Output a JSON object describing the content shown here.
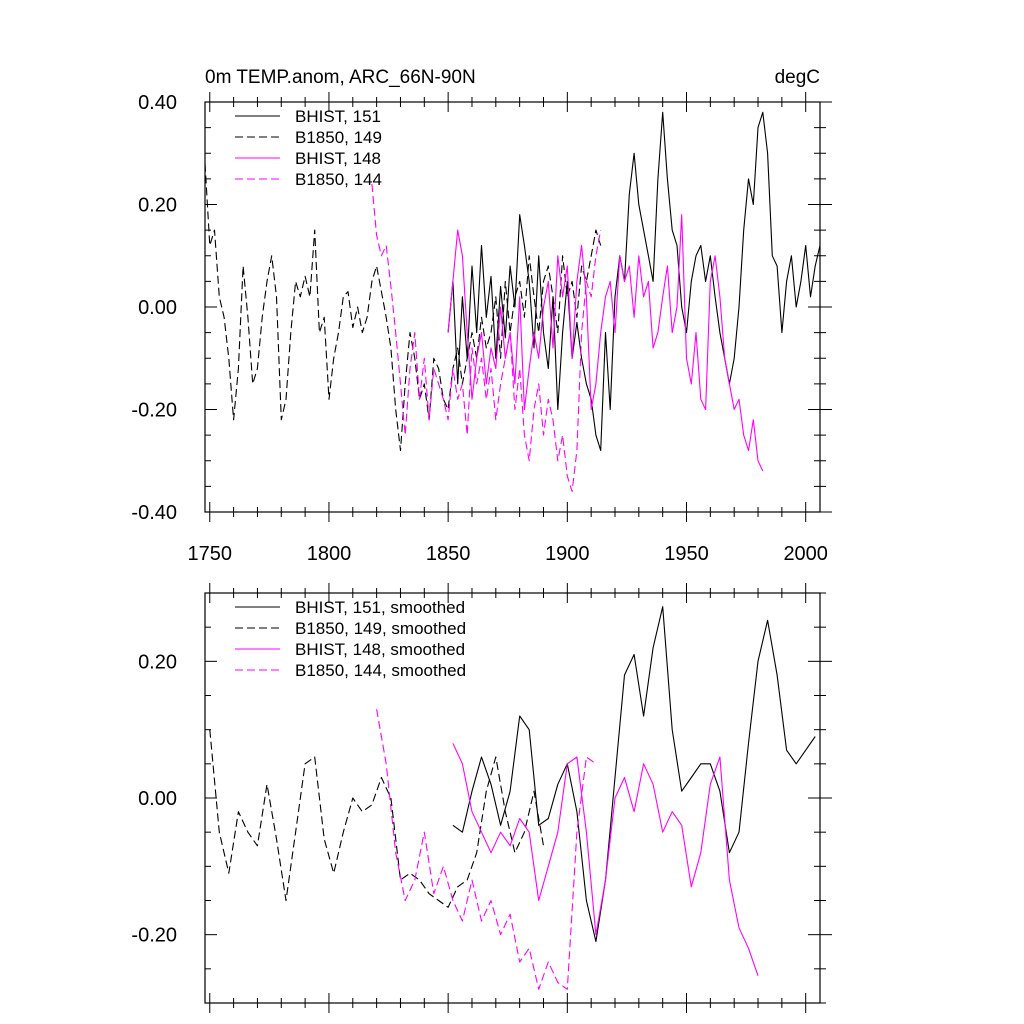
{
  "title_left": "0m TEMP.anom, ARC_66N-90N",
  "title_right": "degC",
  "colors": {
    "black": "#000000",
    "magenta": "#ff00ff"
  },
  "chart_data": [
    {
      "type": "line",
      "xlim": [
        1748,
        2006
      ],
      "ylim": [
        -0.4,
        0.4
      ],
      "xticks": [
        1750,
        1800,
        1850,
        1900,
        1950,
        2000
      ],
      "xtick_labels": [
        "1750",
        "1800",
        "1850",
        "1900",
        "1950",
        "2000"
      ],
      "yticks": [
        -0.4,
        -0.2,
        0.0,
        0.2,
        0.4
      ],
      "ytick_labels": [
        "-0.40",
        "-0.20",
        "0.00",
        "0.20",
        "0.40"
      ],
      "legend_position": "top-left",
      "series": [
        {
          "name": "BHIST, 151",
          "color": "#000000",
          "dash": "solid",
          "x": [
            1850,
            1852,
            1854,
            1856,
            1858,
            1860,
            1862,
            1864,
            1866,
            1868,
            1870,
            1872,
            1874,
            1876,
            1878,
            1880,
            1882,
            1884,
            1886,
            1888,
            1890,
            1892,
            1894,
            1896,
            1898,
            1900,
            1902,
            1904,
            1906,
            1908,
            1910,
            1912,
            1914,
            1916,
            1918,
            1920,
            1922,
            1924,
            1926,
            1928,
            1930,
            1932,
            1934,
            1936,
            1938,
            1940,
            1942,
            1944,
            1946,
            1948,
            1950,
            1952,
            1954,
            1956,
            1958,
            1960,
            1962,
            1964,
            1966,
            1968,
            1970,
            1972,
            1974,
            1976,
            1978,
            1980,
            1982,
            1984,
            1986,
            1988,
            1990,
            1992,
            1994,
            1996,
            1998,
            2000,
            2002,
            2004,
            2006
          ],
          "y": [
            -0.05,
            0.05,
            -0.15,
            0.02,
            -0.1,
            0.08,
            -0.05,
            0.12,
            -0.02,
            0.06,
            -0.1,
            0.04,
            -0.06,
            0.08,
            0.0,
            0.18,
            0.12,
            0.05,
            -0.08,
            0.1,
            -0.05,
            -0.12,
            0.02,
            -0.2,
            -0.05,
            0.05,
            -0.1,
            -0.03,
            -0.1,
            -0.15,
            -0.18,
            -0.25,
            -0.28,
            -0.05,
            -0.2,
            0.02,
            0.1,
            0.05,
            0.22,
            0.3,
            0.2,
            0.15,
            0.1,
            0.05,
            0.25,
            0.38,
            0.25,
            0.15,
            0.12,
            0.0,
            -0.05,
            0.05,
            0.1,
            0.12,
            0.05,
            0.1,
            0.02,
            -0.05,
            -0.1,
            -0.15,
            -0.1,
            0.0,
            0.15,
            0.25,
            0.2,
            0.35,
            0.38,
            0.3,
            0.1,
            0.08,
            -0.05,
            0.05,
            0.1,
            0.0,
            0.05,
            0.12,
            0.02,
            0.08,
            0.12
          ]
        },
        {
          "name": "B1850, 149",
          "color": "#000000",
          "dash": "dashed",
          "x": [
            1748,
            1750,
            1752,
            1754,
            1756,
            1758,
            1760,
            1762,
            1764,
            1766,
            1768,
            1770,
            1772,
            1774,
            1776,
            1778,
            1780,
            1782,
            1784,
            1786,
            1788,
            1790,
            1792,
            1794,
            1796,
            1798,
            1800,
            1802,
            1804,
            1806,
            1808,
            1810,
            1812,
            1814,
            1816,
            1818,
            1820,
            1822,
            1824,
            1826,
            1828,
            1830,
            1832,
            1834,
            1836,
            1838,
            1840,
            1842,
            1844,
            1846,
            1848,
            1850,
            1852,
            1854,
            1856,
            1858,
            1860,
            1862,
            1864,
            1866,
            1868,
            1870,
            1872,
            1874,
            1876,
            1878,
            1880,
            1882,
            1884,
            1886,
            1888,
            1890,
            1892,
            1894,
            1896,
            1898,
            1900,
            1902,
            1904,
            1906,
            1908,
            1910,
            1912,
            1914
          ],
          "y": [
            0.28,
            0.12,
            0.15,
            0.02,
            -0.02,
            -0.1,
            -0.22,
            -0.12,
            0.08,
            -0.02,
            -0.15,
            -0.12,
            -0.02,
            0.05,
            0.1,
            0.02,
            -0.22,
            -0.18,
            -0.05,
            0.05,
            0.02,
            0.06,
            0.02,
            0.15,
            -0.05,
            -0.02,
            -0.18,
            -0.1,
            -0.05,
            0.02,
            0.03,
            -0.04,
            0.0,
            -0.05,
            -0.02,
            0.05,
            0.08,
            0.03,
            -0.02,
            -0.08,
            -0.2,
            -0.28,
            -0.15,
            -0.05,
            -0.1,
            -0.18,
            -0.15,
            -0.22,
            -0.1,
            -0.12,
            -0.18,
            -0.2,
            -0.12,
            -0.08,
            -0.15,
            -0.1,
            -0.05,
            -0.1,
            -0.02,
            -0.08,
            -0.05,
            0.02,
            -0.1,
            0.05,
            -0.05,
            0.02,
            0.05,
            -0.02,
            0.1,
            0.02,
            -0.05,
            0.05,
            0.08,
            0.02,
            -0.05,
            0.1,
            0.02,
            0.05,
            -0.02,
            0.08,
            0.05,
            0.1,
            0.15,
            0.12
          ]
        },
        {
          "name": "BHIST, 148",
          "color": "#ff00ff",
          "dash": "solid",
          "x": [
            1850,
            1852,
            1854,
            1856,
            1858,
            1860,
            1862,
            1864,
            1866,
            1868,
            1870,
            1872,
            1874,
            1876,
            1878,
            1880,
            1882,
            1884,
            1886,
            1888,
            1890,
            1892,
            1894,
            1896,
            1898,
            1900,
            1902,
            1904,
            1906,
            1908,
            1910,
            1912,
            1914,
            1916,
            1918,
            1920,
            1922,
            1924,
            1926,
            1928,
            1930,
            1932,
            1934,
            1936,
            1938,
            1940,
            1942,
            1944,
            1946,
            1948,
            1950,
            1952,
            1954,
            1956,
            1958,
            1960,
            1962,
            1964,
            1966,
            1968,
            1970,
            1972,
            1974,
            1976,
            1978,
            1980,
            1982
          ],
          "y": [
            -0.05,
            0.05,
            0.15,
            0.1,
            -0.05,
            -0.18,
            -0.1,
            -0.05,
            -0.15,
            -0.08,
            -0.12,
            0.0,
            -0.1,
            -0.05,
            -0.15,
            0.02,
            -0.2,
            -0.12,
            -0.05,
            -0.1,
            0.0,
            0.05,
            -0.08,
            0.1,
            0.02,
            0.08,
            -0.1,
            0.05,
            0.12,
            0.02,
            -0.2,
            -0.15,
            -0.05,
            0.02,
            0.05,
            -0.05,
            0.1,
            0.05,
            0.08,
            -0.02,
            0.1,
            0.02,
            0.05,
            -0.08,
            -0.05,
            0.02,
            0.08,
            -0.05,
            0.0,
            0.18,
            -0.1,
            -0.15,
            -0.05,
            -0.18,
            -0.2,
            0.05,
            0.1,
            0.02,
            -0.1,
            -0.15,
            -0.2,
            -0.18,
            -0.25,
            -0.28,
            -0.22,
            -0.3,
            -0.32
          ]
        },
        {
          "name": "B1850, 144",
          "color": "#ff00ff",
          "dash": "dashed",
          "x": [
            1818,
            1820,
            1822,
            1824,
            1826,
            1828,
            1830,
            1832,
            1834,
            1836,
            1838,
            1840,
            1842,
            1844,
            1846,
            1848,
            1850,
            1852,
            1854,
            1856,
            1858,
            1860,
            1862,
            1864,
            1866,
            1868,
            1870,
            1872,
            1874,
            1876,
            1878,
            1880,
            1882,
            1884,
            1886,
            1888,
            1890,
            1892,
            1894,
            1896,
            1898,
            1900,
            1902,
            1904,
            1906,
            1908,
            1910,
            1912,
            1914
          ],
          "y": [
            0.24,
            0.14,
            0.1,
            0.12,
            0.04,
            -0.05,
            -0.15,
            -0.25,
            -0.12,
            -0.05,
            -0.18,
            -0.1,
            -0.22,
            -0.12,
            -0.15,
            -0.18,
            -0.22,
            -0.12,
            -0.18,
            -0.15,
            -0.25,
            -0.08,
            -0.15,
            -0.1,
            -0.18,
            -0.12,
            -0.22,
            -0.15,
            -0.1,
            -0.05,
            -0.2,
            -0.12,
            -0.25,
            -0.3,
            -0.2,
            -0.15,
            -0.25,
            -0.18,
            -0.22,
            -0.3,
            -0.25,
            -0.33,
            -0.36,
            -0.28,
            -0.05,
            0.05,
            0.02,
            0.1,
            0.15
          ]
        }
      ]
    },
    {
      "type": "line",
      "xlim": [
        1748,
        2006
      ],
      "ylim": [
        -0.3,
        0.3
      ],
      "xticks": [
        1750,
        1800,
        1850,
        1900,
        1950,
        2000
      ],
      "xtick_labels": [],
      "yticks": [
        -0.2,
        0.0,
        0.2
      ],
      "ytick_labels": [
        "-0.20",
        "0.00",
        "0.20"
      ],
      "legend_position": "top-left",
      "series": [
        {
          "name": "BHIST, 151, smoothed",
          "color": "#000000",
          "dash": "solid",
          "x": [
            1852,
            1856,
            1860,
            1864,
            1868,
            1872,
            1876,
            1880,
            1884,
            1888,
            1892,
            1896,
            1900,
            1904,
            1908,
            1912,
            1916,
            1920,
            1924,
            1928,
            1932,
            1936,
            1940,
            1944,
            1948,
            1952,
            1956,
            1960,
            1964,
            1968,
            1972,
            1976,
            1980,
            1984,
            1988,
            1992,
            1996,
            2000,
            2004
          ],
          "y": [
            -0.04,
            -0.05,
            0.01,
            0.06,
            0.02,
            -0.04,
            0.01,
            0.12,
            0.1,
            -0.04,
            -0.03,
            0.02,
            0.05,
            -0.02,
            -0.15,
            -0.21,
            -0.12,
            0.03,
            0.18,
            0.21,
            0.12,
            0.22,
            0.28,
            0.1,
            0.01,
            0.03,
            0.05,
            0.05,
            0.01,
            -0.08,
            -0.05,
            0.08,
            0.2,
            0.26,
            0.18,
            0.07,
            0.05,
            0.07,
            0.09
          ]
        },
        {
          "name": "B1850, 149, smoothed",
          "color": "#000000",
          "dash": "dashed",
          "x": [
            1750,
            1754,
            1758,
            1762,
            1766,
            1770,
            1774,
            1778,
            1782,
            1786,
            1790,
            1794,
            1798,
            1802,
            1806,
            1810,
            1814,
            1818,
            1822,
            1826,
            1830,
            1834,
            1838,
            1842,
            1846,
            1850,
            1854,
            1858,
            1862,
            1866,
            1870,
            1874,
            1878,
            1882,
            1886,
            1890
          ],
          "y": [
            0.1,
            -0.05,
            -0.11,
            -0.02,
            -0.05,
            -0.07,
            0.02,
            -0.06,
            -0.15,
            -0.05,
            0.05,
            0.06,
            -0.06,
            -0.11,
            -0.05,
            0.0,
            -0.02,
            -0.01,
            0.03,
            0.0,
            -0.12,
            -0.11,
            -0.12,
            -0.14,
            -0.15,
            -0.16,
            -0.13,
            -0.12,
            -0.08,
            0.01,
            0.06,
            -0.02,
            -0.08,
            -0.05,
            0.01,
            -0.07
          ]
        },
        {
          "name": "BHIST, 148, smoothed",
          "color": "#ff00ff",
          "dash": "solid",
          "x": [
            1852,
            1856,
            1860,
            1864,
            1868,
            1872,
            1876,
            1880,
            1884,
            1888,
            1892,
            1896,
            1900,
            1904,
            1908,
            1912,
            1916,
            1920,
            1924,
            1928,
            1932,
            1936,
            1940,
            1944,
            1948,
            1952,
            1956,
            1960,
            1964,
            1968,
            1972,
            1976,
            1980
          ],
          "y": [
            0.08,
            0.05,
            -0.02,
            -0.05,
            -0.08,
            -0.05,
            -0.07,
            -0.03,
            -0.05,
            -0.15,
            -0.1,
            -0.05,
            0.05,
            0.06,
            -0.05,
            -0.2,
            -0.12,
            0.0,
            0.03,
            -0.02,
            0.05,
            0.02,
            -0.05,
            -0.02,
            -0.04,
            -0.13,
            -0.08,
            0.02,
            0.06,
            -0.12,
            -0.19,
            -0.22,
            -0.26
          ]
        },
        {
          "name": "B1850, 144, smoothed",
          "color": "#ff00ff",
          "dash": "dashed",
          "x": [
            1820,
            1824,
            1828,
            1832,
            1836,
            1840,
            1844,
            1848,
            1852,
            1856,
            1860,
            1864,
            1868,
            1872,
            1876,
            1880,
            1884,
            1888,
            1892,
            1896,
            1900,
            1904,
            1908,
            1912
          ],
          "y": [
            0.13,
            0.05,
            -0.08,
            -0.15,
            -0.12,
            -0.05,
            -0.14,
            -0.1,
            -0.15,
            -0.18,
            -0.12,
            -0.18,
            -0.15,
            -0.2,
            -0.17,
            -0.24,
            -0.22,
            -0.28,
            -0.24,
            -0.27,
            -0.28,
            -0.05,
            0.06,
            0.05
          ]
        }
      ]
    }
  ]
}
